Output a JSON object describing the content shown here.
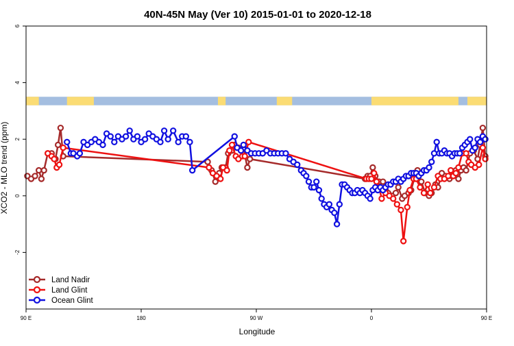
{
  "chart_data": {
    "type": "line",
    "title": "40N-45N May (Ver 10)   2015-01-01 to 2020-12-18",
    "xlabel": "Longitude",
    "ylabel": "XCO2 - MLO trend (ppm)",
    "xlim": [
      90,
      450
    ],
    "ylim": [
      -4,
      6
    ],
    "x_ticks": [
      {
        "value": 90,
        "label": "90 E"
      },
      {
        "value": 180,
        "label": "180"
      },
      {
        "value": 270,
        "label": "90 W"
      },
      {
        "value": 360,
        "label": "0"
      },
      {
        "value": 450,
        "label": "90 E"
      },
      {
        "value": 540,
        "label": "180"
      }
    ],
    "y_ticks": [
      {
        "value": -2,
        "label": "-2"
      },
      {
        "value": 0,
        "label": "0"
      },
      {
        "value": 2,
        "label": "2"
      },
      {
        "value": 4,
        "label": "4"
      },
      {
        "value": 6,
        "label": "6"
      }
    ],
    "legend_position": "bottom-left",
    "land_band": {
      "y_range": [
        3.2,
        3.5
      ],
      "ocean_color": "#a4bee0",
      "land_color": "#fbdc74",
      "land_segments": [
        [
          90,
          100
        ],
        [
          122,
          143
        ],
        [
          240,
          246
        ],
        [
          286,
          298
        ],
        [
          360,
          390
        ],
        [
          390,
          428
        ],
        [
          435,
          459
        ],
        [
          492,
          510
        ],
        [
          535,
          540
        ]
      ]
    },
    "series": [
      {
        "name": "Land Nadir",
        "color": "#a52a2a",
        "points": [
          [
            91,
            0.7
          ],
          [
            94,
            0.6
          ],
          [
            97,
            0.7
          ],
          [
            100,
            0.9
          ],
          [
            102,
            0.6
          ],
          [
            104,
            0.9
          ],
          [
            107,
            1.5
          ],
          [
            110,
            1.5
          ],
          [
            113,
            1.3
          ],
          [
            115,
            1.8
          ],
          [
            117,
            2.4
          ],
          [
            119,
            1.4
          ],
          [
            232,
            1.2
          ],
          [
            235,
            0.9
          ],
          [
            238,
            0.5
          ],
          [
            241,
            0.8
          ],
          [
            243,
            1.0
          ],
          [
            246,
            1.0
          ],
          [
            248,
            1.5
          ],
          [
            251,
            1.6
          ],
          [
            253,
            1.8
          ],
          [
            256,
            1.7
          ],
          [
            258,
            1.6
          ],
          [
            260,
            1.7
          ],
          [
            263,
            1.0
          ],
          [
            265,
            1.3
          ],
          [
            355,
            0.6
          ],
          [
            357,
            0.7
          ],
          [
            359,
            0.7
          ],
          [
            361,
            1.0
          ],
          [
            363,
            0.7
          ],
          [
            366,
            0.5
          ],
          [
            369,
            0.5
          ],
          [
            371,
            0.2
          ],
          [
            373,
            0.1
          ],
          [
            376,
            0.0
          ],
          [
            379,
            0.1
          ],
          [
            381,
            0.3
          ],
          [
            384,
            -0.1
          ],
          [
            386,
            0.0
          ],
          [
            389,
            0.1
          ],
          [
            391,
            0.2
          ],
          [
            394,
            0.7
          ],
          [
            396,
            0.9
          ],
          [
            399,
            0.5
          ],
          [
            402,
            0.1
          ],
          [
            405,
            0.0
          ],
          [
            407,
            0.1
          ],
          [
            410,
            0.4
          ],
          [
            412,
            0.3
          ],
          [
            415,
            0.8
          ],
          [
            418,
            0.7
          ],
          [
            421,
            0.6
          ],
          [
            423,
            0.7
          ],
          [
            426,
            0.9
          ],
          [
            428,
            0.6
          ],
          [
            430,
            0.9
          ],
          [
            432,
            1.0
          ],
          [
            434,
            0.9
          ],
          [
            437,
            1.5
          ],
          [
            440,
            1.6
          ],
          [
            443,
            1.3
          ],
          [
            445,
            1.8
          ],
          [
            447,
            2.4
          ],
          [
            449,
            1.4
          ]
        ]
      },
      {
        "name": "Land Glint",
        "color": "#ee1111",
        "points": [
          [
            107,
            1.5
          ],
          [
            110,
            1.4
          ],
          [
            112,
            1.3
          ],
          [
            114,
            1.0
          ],
          [
            116,
            1.1
          ],
          [
            119,
            1.7
          ],
          [
            233,
            1.0
          ],
          [
            236,
            0.8
          ],
          [
            239,
            0.7
          ],
          [
            242,
            0.6
          ],
          [
            244,
            1.0
          ],
          [
            247,
            0.9
          ],
          [
            249,
            1.6
          ],
          [
            251,
            1.8
          ],
          [
            254,
            1.4
          ],
          [
            256,
            1.3
          ],
          [
            259,
            1.4
          ],
          [
            261,
            1.4
          ],
          [
            264,
            1.9
          ],
          [
            356,
            0.6
          ],
          [
            358,
            0.6
          ],
          [
            360,
            0.6
          ],
          [
            362,
            0.8
          ],
          [
            364,
            0.5
          ],
          [
            366,
            0.3
          ],
          [
            368,
            -0.1
          ],
          [
            371,
            0.1
          ],
          [
            374,
            0.0
          ],
          [
            377,
            -0.1
          ],
          [
            380,
            -0.3
          ],
          [
            383,
            -0.5
          ],
          [
            385,
            -1.6
          ],
          [
            388,
            -0.4
          ],
          [
            390,
            0.2
          ],
          [
            393,
            0.6
          ],
          [
            395,
            0.6
          ],
          [
            398,
            0.3
          ],
          [
            401,
            0.1
          ],
          [
            404,
            0.4
          ],
          [
            406,
            0.1
          ],
          [
            409,
            0.3
          ],
          [
            412,
            0.7
          ],
          [
            414,
            0.6
          ],
          [
            417,
            0.6
          ],
          [
            420,
            0.7
          ],
          [
            422,
            0.9
          ],
          [
            424,
            0.7
          ],
          [
            426,
            0.8
          ],
          [
            428,
            1.0
          ],
          [
            431,
            1.5
          ],
          [
            434,
            1.5
          ],
          [
            436,
            1.2
          ],
          [
            438,
            1.1
          ],
          [
            441,
            1.0
          ],
          [
            444,
            1.1
          ],
          [
            447,
            1.7
          ],
          [
            449,
            1.3
          ]
        ]
      },
      {
        "name": "Ocean Glint",
        "color": "#1010e0",
        "points": [
          [
            122,
            1.9
          ],
          [
            125,
            1.5
          ],
          [
            127,
            1.5
          ],
          [
            130,
            1.4
          ],
          [
            132,
            1.5
          ],
          [
            135,
            1.9
          ],
          [
            138,
            1.8
          ],
          [
            141,
            1.9
          ],
          [
            144,
            2.0
          ],
          [
            147,
            1.9
          ],
          [
            150,
            1.8
          ],
          [
            153,
            2.2
          ],
          [
            156,
            2.1
          ],
          [
            159,
            1.9
          ],
          [
            162,
            2.1
          ],
          [
            165,
            2.0
          ],
          [
            168,
            2.1
          ],
          [
            171,
            2.3
          ],
          [
            174,
            2.0
          ],
          [
            177,
            2.1
          ],
          [
            180,
            1.9
          ],
          [
            183,
            2.0
          ],
          [
            186,
            2.2
          ],
          [
            189,
            2.1
          ],
          [
            192,
            2.0
          ],
          [
            195,
            1.9
          ],
          [
            198,
            2.3
          ],
          [
            201,
            2.0
          ],
          [
            205,
            2.3
          ],
          [
            209,
            1.9
          ],
          [
            212,
            2.1
          ],
          [
            215,
            2.1
          ],
          [
            218,
            1.9
          ],
          [
            220,
            0.9
          ],
          [
            253,
            2.1
          ],
          [
            255,
            1.7
          ],
          [
            258,
            1.6
          ],
          [
            260,
            1.8
          ],
          [
            263,
            1.6
          ],
          [
            266,
            1.5
          ],
          [
            269,
            1.5
          ],
          [
            272,
            1.5
          ],
          [
            275,
            1.5
          ],
          [
            278,
            1.6
          ],
          [
            281,
            1.5
          ],
          [
            284,
            1.5
          ],
          [
            287,
            1.5
          ],
          [
            290,
            1.5
          ],
          [
            293,
            1.5
          ],
          [
            296,
            1.3
          ],
          [
            299,
            1.2
          ],
          [
            302,
            1.1
          ],
          [
            305,
            0.9
          ],
          [
            307,
            0.8
          ],
          [
            309,
            0.7
          ],
          [
            311,
            0.5
          ],
          [
            313,
            0.3
          ],
          [
            315,
            0.3
          ],
          [
            317,
            0.5
          ],
          [
            319,
            0.2
          ],
          [
            321,
            -0.1
          ],
          [
            323,
            -0.3
          ],
          [
            325,
            -0.4
          ],
          [
            327,
            -0.3
          ],
          [
            329,
            -0.5
          ],
          [
            331,
            -0.6
          ],
          [
            333,
            -1.0
          ],
          [
            335,
            -0.3
          ],
          [
            337,
            0.4
          ],
          [
            339,
            0.4
          ],
          [
            341,
            0.3
          ],
          [
            343,
            0.2
          ],
          [
            345,
            0.1
          ],
          [
            347,
            0.1
          ],
          [
            349,
            0.2
          ],
          [
            351,
            0.1
          ],
          [
            353,
            0.2
          ],
          [
            355,
            0.1
          ],
          [
            357,
            0.0
          ],
          [
            359,
            -0.1
          ],
          [
            361,
            0.2
          ],
          [
            363,
            0.3
          ],
          [
            365,
            0.2
          ],
          [
            367,
            0.3
          ],
          [
            369,
            0.2
          ],
          [
            371,
            0.3
          ],
          [
            373,
            0.4
          ],
          [
            375,
            0.4
          ],
          [
            377,
            0.5
          ],
          [
            379,
            0.5
          ],
          [
            381,
            0.6
          ],
          [
            383,
            0.5
          ],
          [
            385,
            0.6
          ],
          [
            387,
            0.7
          ],
          [
            389,
            0.7
          ],
          [
            391,
            0.8
          ],
          [
            393,
            0.8
          ],
          [
            395,
            0.8
          ],
          [
            397,
            0.7
          ],
          [
            399,
            0.8
          ],
          [
            401,
            0.9
          ],
          [
            403,
            0.9
          ],
          [
            405,
            1.0
          ],
          [
            407,
            1.2
          ],
          [
            409,
            1.5
          ],
          [
            411,
            1.9
          ],
          [
            413,
            1.5
          ],
          [
            415,
            1.5
          ],
          [
            417,
            1.6
          ],
          [
            419,
            1.5
          ],
          [
            421,
            1.5
          ],
          [
            423,
            1.4
          ],
          [
            425,
            1.5
          ],
          [
            427,
            1.5
          ],
          [
            429,
            1.5
          ],
          [
            431,
            1.7
          ],
          [
            433,
            1.8
          ],
          [
            435,
            1.9
          ],
          [
            437,
            2.0
          ],
          [
            439,
            1.6
          ],
          [
            441,
            1.7
          ],
          [
            443,
            2.0
          ],
          [
            445,
            1.9
          ],
          [
            447,
            2.1
          ],
          [
            449,
            2.0
          ]
        ]
      }
    ]
  }
}
